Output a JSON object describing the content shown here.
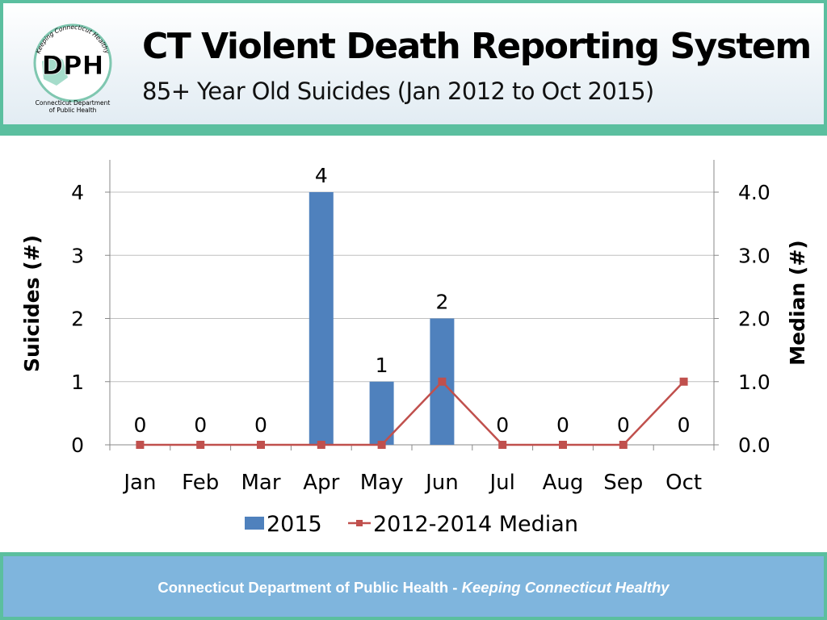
{
  "header": {
    "title": "CT Violent Death Reporting System",
    "subtitle": "85+ Year Old Suicides (Jan 2012 to Oct 2015)"
  },
  "logo": {
    "text": "DPH",
    "arc_text": "Keeping Connecticut Healthy",
    "caption_line1": "Connecticut Department",
    "caption_line2": "of Public Health"
  },
  "footer": {
    "org": "Connecticut Department of Public Health",
    "separator": "-",
    "tagline": "Keeping Connecticut Healthy"
  },
  "colors": {
    "frame": "#5bbf9f",
    "footer_bg": "#7fb5dd",
    "bar": "#4f81bd",
    "line": "#c0504d"
  },
  "chart_data": {
    "type": "bar",
    "title": "",
    "categories": [
      "Jan",
      "Feb",
      "Mar",
      "Apr",
      "May",
      "Jun",
      "Jul",
      "Aug",
      "Sep",
      "Oct"
    ],
    "series": [
      {
        "name": "2015",
        "type": "bar",
        "axis": "left",
        "values": [
          0,
          0,
          0,
          4,
          1,
          2,
          0,
          0,
          0,
          0
        ]
      },
      {
        "name": "2012-2014 Median",
        "type": "line",
        "axis": "right",
        "values": [
          0,
          0,
          0,
          0,
          0,
          1,
          0,
          0,
          0,
          1
        ]
      }
    ],
    "bar_data_labels": [
      "0",
      "0",
      "0",
      "4",
      "1",
      "2",
      "0",
      "0",
      "0",
      "0"
    ],
    "ylabel": "Suicides (#)",
    "y2label": "Median (#)",
    "ylim": [
      0,
      4
    ],
    "y2lim": [
      0,
      4
    ],
    "yticks": [
      "0",
      "1",
      "2",
      "3",
      "4"
    ],
    "y2ticks": [
      "0.0",
      "1.0",
      "2.0",
      "3.0",
      "4.0"
    ],
    "grid": true,
    "legend_position": "bottom"
  }
}
